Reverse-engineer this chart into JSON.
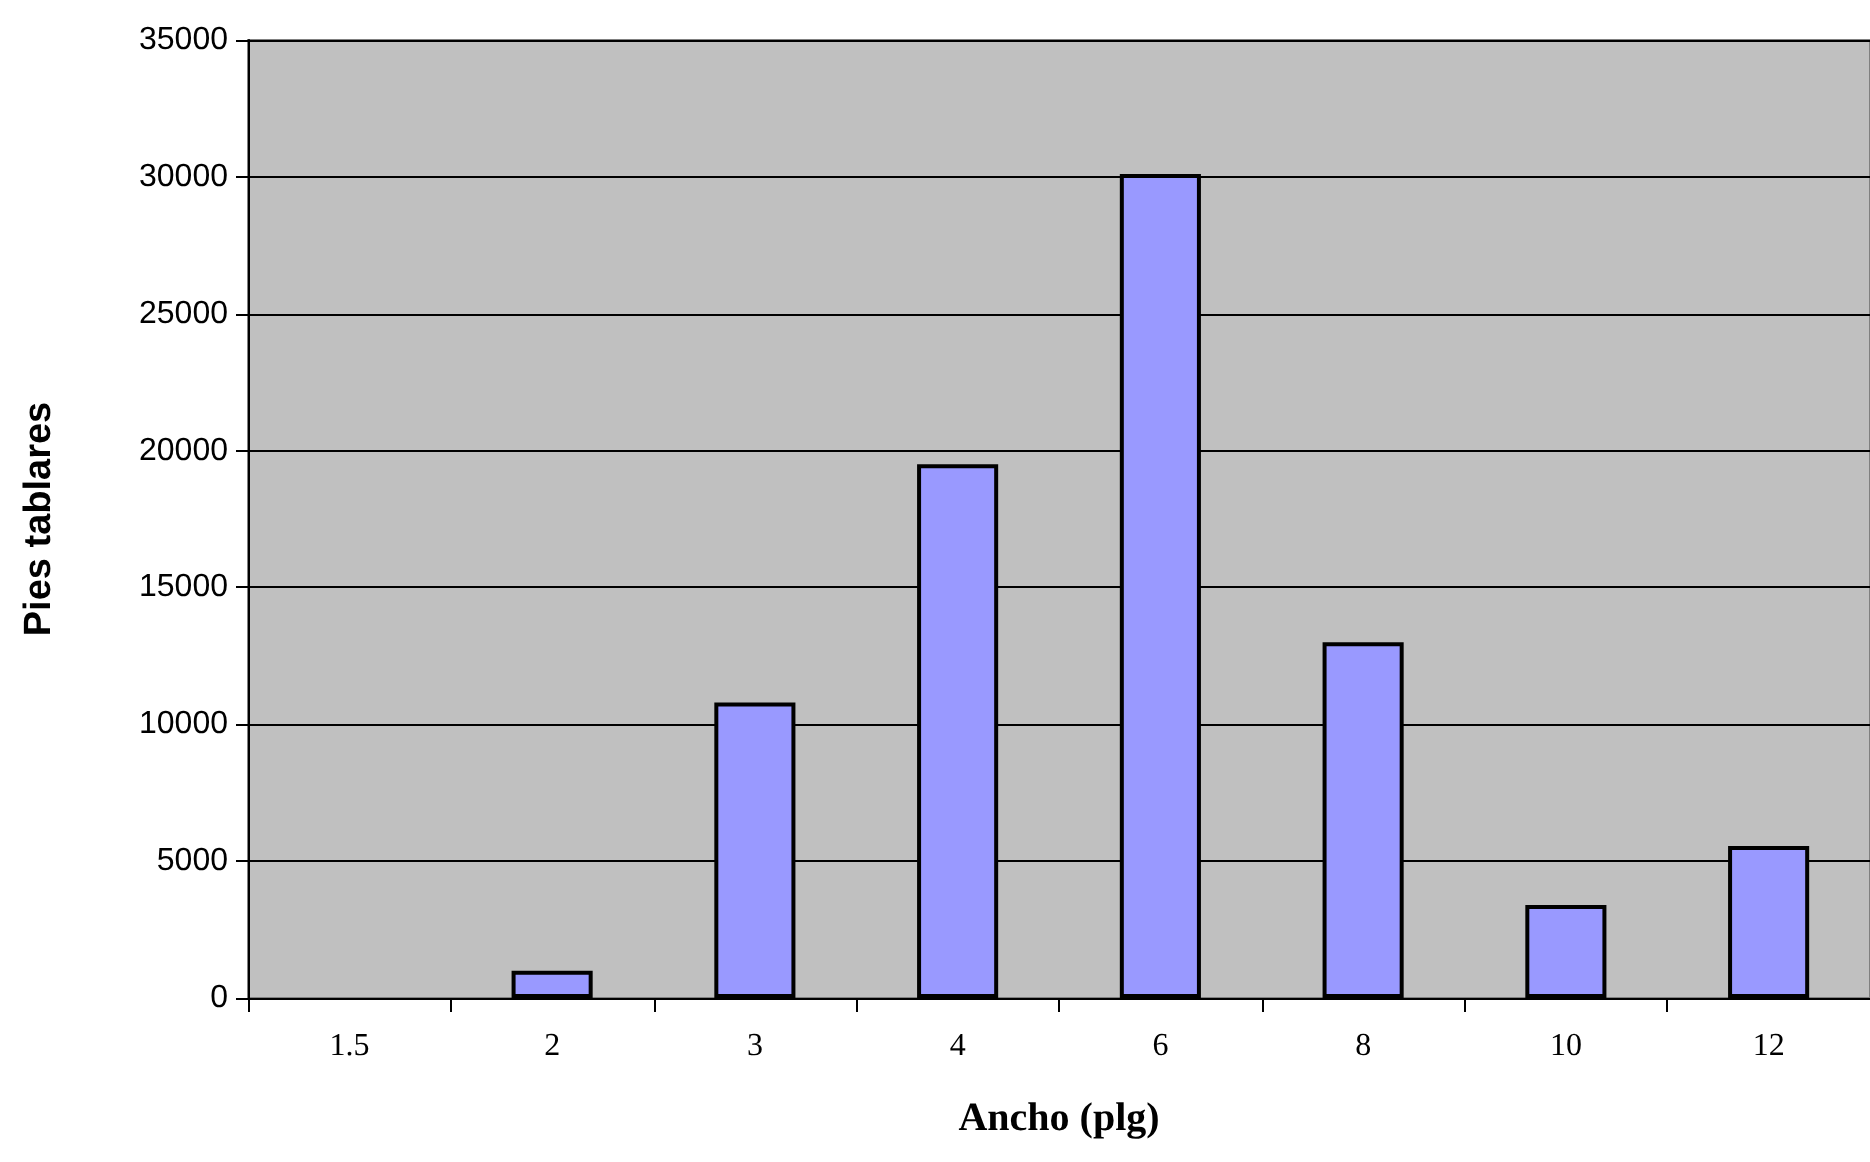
{
  "chart_data": {
    "type": "bar",
    "xlabel": "Ancho (plg)",
    "ylabel": "Pies tablares",
    "categories": [
      "1.5",
      "2",
      "3",
      "4",
      "6",
      "8",
      "10",
      "12"
    ],
    "values": [
      0,
      1000,
      10800,
      19500,
      30100,
      13000,
      3400,
      5550
    ],
    "color": "#9999ff",
    "ylim": [
      0,
      35000
    ],
    "yticks": [
      0,
      5000,
      10000,
      15000,
      20000,
      25000,
      30000,
      35000
    ],
    "grid": "y"
  }
}
